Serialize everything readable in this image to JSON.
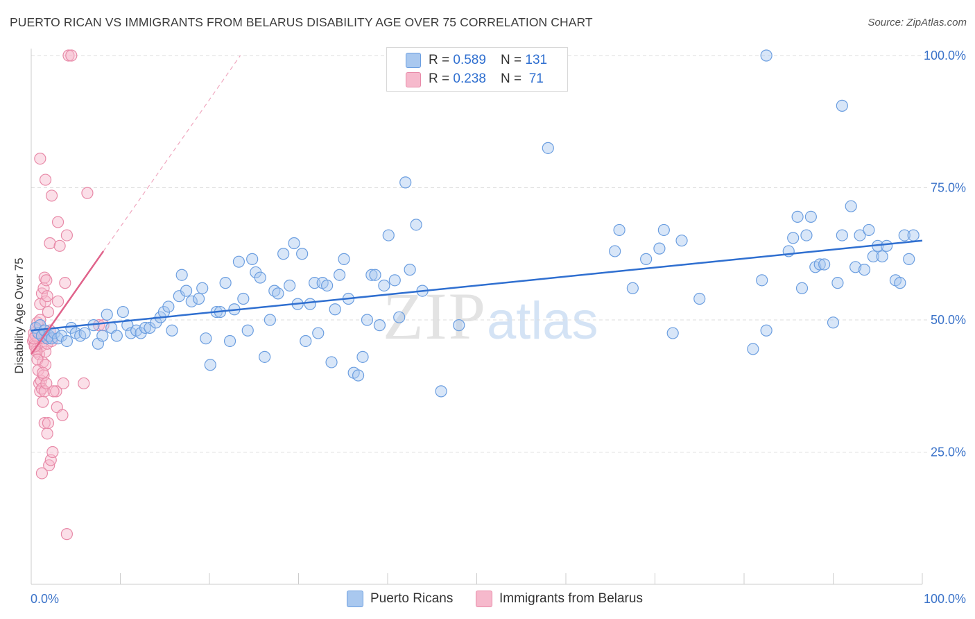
{
  "header": {
    "title": "PUERTO RICAN VS IMMIGRANTS FROM BELARUS DISABILITY AGE OVER 75 CORRELATION CHART",
    "source": "Source: ZipAtlas.com"
  },
  "watermark": {
    "zip": "ZIP",
    "atlas": "atlas"
  },
  "legend": {
    "rows": [
      {
        "r_label": "R = ",
        "r_value": "0.589",
        "n_label": "N = ",
        "n_value": "131"
      },
      {
        "r_label": "R = ",
        "r_value": "0.238",
        "n_label": "N = ",
        "n_value": " 71"
      }
    ]
  },
  "bottom_legend": [
    "Puerto Ricans",
    "Immigrants from Belarus"
  ],
  "colors": {
    "blue_fill": "#a9c8ef",
    "blue_stroke": "#6b9ee0",
    "blue_line": "#2f6fd0",
    "pink_fill": "#f6b9cc",
    "pink_stroke": "#e88aa8",
    "pink_line": "#e0638b",
    "grid": "#dddddd",
    "tick_text": "#3b73c9"
  },
  "chart_data": {
    "type": "scatter",
    "title": "PUERTO RICAN VS IMMIGRANTS FROM BELARUS DISABILITY AGE OVER 75 CORRELATION CHART",
    "xlabel": "",
    "ylabel": "Disability Age Over 75",
    "xlim": [
      0,
      100
    ],
    "ylim": [
      0,
      102
    ],
    "x_tick_labels": [
      "0.0%",
      "100.0%"
    ],
    "y_ticks": [
      25,
      50,
      75,
      100
    ],
    "y_tick_labels": [
      "25.0%",
      "50.0%",
      "75.0%",
      "100.0%"
    ],
    "grid": true,
    "legend_placement": "top-center",
    "series": [
      {
        "name": "Puerto Ricans",
        "R": 0.589,
        "N": 131,
        "trendline": {
          "x": [
            0,
            100
          ],
          "y": [
            48.0,
            65.0
          ]
        },
        "points": [
          [
            0.5,
            48.5
          ],
          [
            0.8,
            47.5
          ],
          [
            1.0,
            49.0
          ],
          [
            1.2,
            47.0
          ],
          [
            1.5,
            48.0
          ],
          [
            1.8,
            46.5
          ],
          [
            2.0,
            47.0
          ],
          [
            2.3,
            46.5
          ],
          [
            2.6,
            47.5
          ],
          [
            3.0,
            46.5
          ],
          [
            3.4,
            47.0
          ],
          [
            4.0,
            46.0
          ],
          [
            4.5,
            48.5
          ],
          [
            5.0,
            47.5
          ],
          [
            5.5,
            47.0
          ],
          [
            6.0,
            47.5
          ],
          [
            7.0,
            49.0
          ],
          [
            7.5,
            45.5
          ],
          [
            8.0,
            47.0
          ],
          [
            8.5,
            51.0
          ],
          [
            9.0,
            48.5
          ],
          [
            9.6,
            47.0
          ],
          [
            10.3,
            51.5
          ],
          [
            10.8,
            49.0
          ],
          [
            11.2,
            47.5
          ],
          [
            11.8,
            48.0
          ],
          [
            12.3,
            47.5
          ],
          [
            12.8,
            48.5
          ],
          [
            13.3,
            48.5
          ],
          [
            14.0,
            49.5
          ],
          [
            14.5,
            50.5
          ],
          [
            14.9,
            51.5
          ],
          [
            15.4,
            52.5
          ],
          [
            15.8,
            48.0
          ],
          [
            16.6,
            54.5
          ],
          [
            16.9,
            58.5
          ],
          [
            17.4,
            55.5
          ],
          [
            18.0,
            53.5
          ],
          [
            18.8,
            54.0
          ],
          [
            19.2,
            56.0
          ],
          [
            19.6,
            46.5
          ],
          [
            20.1,
            41.5
          ],
          [
            20.8,
            51.5
          ],
          [
            21.2,
            51.5
          ],
          [
            21.8,
            57.0
          ],
          [
            22.3,
            46.0
          ],
          [
            22.8,
            52.0
          ],
          [
            23.3,
            61.0
          ],
          [
            23.8,
            54.0
          ],
          [
            24.3,
            48.0
          ],
          [
            24.8,
            61.5
          ],
          [
            25.2,
            59.0
          ],
          [
            25.7,
            58.0
          ],
          [
            26.2,
            43.0
          ],
          [
            26.8,
            50.0
          ],
          [
            27.3,
            55.5
          ],
          [
            27.7,
            55.0
          ],
          [
            28.3,
            62.5
          ],
          [
            29.0,
            56.5
          ],
          [
            29.5,
            64.5
          ],
          [
            29.9,
            53.0
          ],
          [
            30.4,
            62.5
          ],
          [
            30.8,
            46.0
          ],
          [
            31.3,
            53.0
          ],
          [
            31.8,
            57.0
          ],
          [
            32.2,
            47.5
          ],
          [
            32.7,
            57.0
          ],
          [
            33.2,
            56.5
          ],
          [
            33.7,
            42.0
          ],
          [
            34.1,
            52.0
          ],
          [
            34.6,
            58.5
          ],
          [
            35.1,
            61.5
          ],
          [
            35.6,
            54.0
          ],
          [
            36.2,
            40.0
          ],
          [
            36.7,
            39.5
          ],
          [
            37.2,
            43.0
          ],
          [
            37.7,
            50.0
          ],
          [
            38.2,
            58.5
          ],
          [
            38.6,
            58.5
          ],
          [
            39.1,
            49.0
          ],
          [
            39.6,
            56.5
          ],
          [
            40.1,
            66.0
          ],
          [
            40.8,
            57.5
          ],
          [
            41.3,
            50.5
          ],
          [
            42.0,
            76.0
          ],
          [
            42.5,
            59.5
          ],
          [
            43.2,
            68.0
          ],
          [
            43.9,
            55.5
          ],
          [
            46.0,
            36.5
          ],
          [
            48.0,
            49.0
          ],
          [
            58.0,
            82.5
          ],
          [
            65.5,
            63.0
          ],
          [
            66.0,
            67.0
          ],
          [
            67.5,
            56.0
          ],
          [
            69.0,
            61.5
          ],
          [
            70.5,
            63.5
          ],
          [
            71.0,
            67.0
          ],
          [
            72.0,
            47.5
          ],
          [
            73.0,
            65.0
          ],
          [
            75.0,
            54.0
          ],
          [
            81.0,
            44.5
          ],
          [
            82.0,
            57.5
          ],
          [
            82.5,
            48.0
          ],
          [
            85.0,
            63.0
          ],
          [
            85.5,
            65.5
          ],
          [
            86.0,
            69.5
          ],
          [
            86.5,
            56.0
          ],
          [
            87.0,
            66.0
          ],
          [
            87.5,
            69.5
          ],
          [
            88.0,
            60.0
          ],
          [
            88.5,
            60.5
          ],
          [
            89.0,
            60.5
          ],
          [
            90.0,
            49.5
          ],
          [
            90.5,
            57.0
          ],
          [
            91.0,
            66.0
          ],
          [
            92.0,
            71.5
          ],
          [
            92.5,
            60.0
          ],
          [
            93.0,
            66.0
          ],
          [
            93.5,
            59.5
          ],
          [
            94.0,
            67.0
          ],
          [
            94.5,
            62.0
          ],
          [
            95.0,
            64.0
          ],
          [
            95.5,
            62.0
          ],
          [
            96.0,
            64.0
          ],
          [
            97.0,
            57.5
          ],
          [
            97.5,
            57.0
          ],
          [
            98.0,
            66.0
          ],
          [
            98.5,
            61.5
          ],
          [
            99.0,
            66.0
          ],
          [
            82.5,
            100.0
          ],
          [
            91.0,
            90.5
          ]
        ]
      },
      {
        "name": "Immigrants from Belarus",
        "R": 0.238,
        "N": 71,
        "trendline": {
          "x": [
            0,
            8.1
          ],
          "y": [
            43.5,
            63.0
          ]
        },
        "points": [
          [
            0.2,
            46.0
          ],
          [
            0.3,
            47.5
          ],
          [
            0.4,
            45.5
          ],
          [
            0.5,
            48.5
          ],
          [
            0.6,
            44.5
          ],
          [
            0.7,
            49.5
          ],
          [
            0.8,
            46.5
          ],
          [
            0.9,
            43.5
          ],
          [
            1.0,
            50.0
          ],
          [
            1.1,
            45.0
          ],
          [
            1.2,
            47.0
          ],
          [
            1.3,
            42.0
          ],
          [
            1.4,
            46.5
          ],
          [
            1.5,
            48.0
          ],
          [
            1.6,
            44.0
          ],
          [
            1.7,
            47.0
          ],
          [
            1.8,
            45.5
          ],
          [
            0.5,
            47.0
          ],
          [
            0.6,
            44.0
          ],
          [
            0.4,
            45.0
          ],
          [
            0.3,
            46.5
          ],
          [
            0.7,
            42.5
          ],
          [
            0.8,
            40.5
          ],
          [
            0.9,
            38.0
          ],
          [
            1.0,
            36.5
          ],
          [
            1.1,
            38.5
          ],
          [
            1.2,
            37.0
          ],
          [
            1.4,
            39.5
          ],
          [
            1.5,
            36.5
          ],
          [
            1.6,
            41.5
          ],
          [
            1.7,
            38.0
          ],
          [
            1.3,
            34.5
          ],
          [
            1.5,
            30.5
          ],
          [
            1.8,
            28.5
          ],
          [
            1.9,
            30.5
          ],
          [
            2.0,
            22.5
          ],
          [
            2.2,
            23.5
          ],
          [
            2.4,
            25.0
          ],
          [
            1.2,
            21.0
          ],
          [
            2.8,
            36.5
          ],
          [
            2.9,
            33.5
          ],
          [
            3.5,
            32.0
          ],
          [
            3.6,
            38.0
          ],
          [
            2.5,
            36.5
          ],
          [
            1.0,
            53.0
          ],
          [
            1.2,
            55.0
          ],
          [
            1.4,
            56.0
          ],
          [
            1.6,
            53.5
          ],
          [
            1.8,
            54.5
          ],
          [
            1.9,
            51.5
          ],
          [
            2.1,
            48.0
          ],
          [
            2.3,
            46.0
          ],
          [
            1.5,
            58.0
          ],
          [
            1.7,
            57.5
          ],
          [
            3.0,
            53.5
          ],
          [
            3.8,
            57.0
          ],
          [
            1.0,
            80.5
          ],
          [
            1.6,
            76.5
          ],
          [
            2.3,
            73.5
          ],
          [
            3.0,
            68.5
          ],
          [
            2.1,
            64.5
          ],
          [
            3.2,
            64.0
          ],
          [
            4.0,
            66.0
          ],
          [
            6.3,
            74.0
          ],
          [
            5.9,
            38.0
          ],
          [
            7.6,
            49.0
          ],
          [
            8.1,
            49.0
          ],
          [
            4.0,
            9.5
          ],
          [
            4.2,
            100.0
          ],
          [
            4.5,
            100.0
          ],
          [
            1.3,
            40.0
          ]
        ]
      }
    ]
  }
}
